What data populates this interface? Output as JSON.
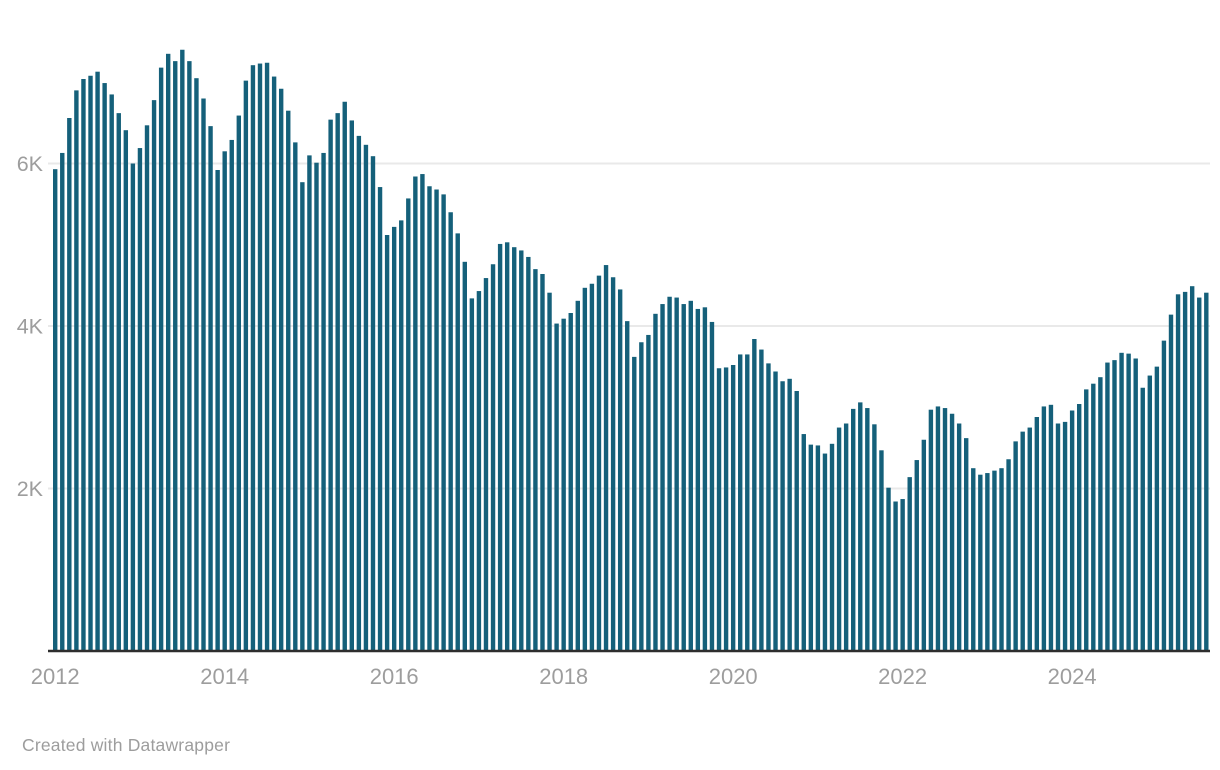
{
  "footer": {
    "attribution": "Created with Datawrapper"
  },
  "colors": {
    "bar": "#15607a",
    "grid": "#e9e9e9",
    "axis_line": "#2e2e2e",
    "tick_label": "#9d9d9d",
    "footer_text": "#9d9d9d",
    "background": "#ffffff"
  },
  "chart_data": {
    "type": "bar",
    "title": "",
    "xlabel": "",
    "ylabel": "",
    "x_unit": "month",
    "start_year": 2012,
    "start_month": 1,
    "end_year": 2025,
    "end_month": 8,
    "ylim": [
      0,
      7500
    ],
    "grid": "horizontal",
    "legend": "none",
    "y_ticks": [
      {
        "label": "2K",
        "value": 2000
      },
      {
        "label": "4K",
        "value": 4000
      },
      {
        "label": "6K",
        "value": 6000
      }
    ],
    "x_ticks": [
      {
        "label": "2012",
        "month_index": 0
      },
      {
        "label": "2014",
        "month_index": 24
      },
      {
        "label": "2016",
        "month_index": 48
      },
      {
        "label": "2018",
        "month_index": 72
      },
      {
        "label": "2020",
        "month_index": 96
      },
      {
        "label": "2022",
        "month_index": 120
      },
      {
        "label": "2024",
        "month_index": 144
      }
    ],
    "values": [
      5930,
      6130,
      6560,
      6900,
      7040,
      7080,
      7130,
      6990,
      6850,
      6620,
      6410,
      6000,
      6190,
      6470,
      6780,
      7180,
      7350,
      7260,
      7400,
      7260,
      7050,
      6800,
      6460,
      5920,
      6150,
      6290,
      6590,
      7020,
      7210,
      7230,
      7240,
      7070,
      6920,
      6650,
      6260,
      5770,
      6100,
      6010,
      6130,
      6540,
      6620,
      6760,
      6530,
      6340,
      6230,
      6090,
      5710,
      5120,
      5220,
      5300,
      5570,
      5840,
      5870,
      5720,
      5680,
      5620,
      5400,
      5140,
      4790,
      4340,
      4430,
      4590,
      4760,
      5010,
      5030,
      4970,
      4930,
      4850,
      4700,
      4640,
      4410,
      4030,
      4090,
      4160,
      4310,
      4470,
      4520,
      4620,
      4750,
      4600,
      4450,
      4060,
      3620,
      3800,
      3890,
      4150,
      4270,
      4360,
      4350,
      4270,
      4310,
      4210,
      4230,
      4050,
      3480,
      3490,
      3520,
      3650,
      3650,
      3840,
      3710,
      3540,
      3440,
      3320,
      3350,
      3200,
      2670,
      2540,
      2530,
      2430,
      2550,
      2750,
      2800,
      2980,
      3060,
      2990,
      2790,
      2470,
      2010,
      1840,
      1870,
      2140,
      2350,
      2600,
      2970,
      3010,
      2990,
      2920,
      2800,
      2620,
      2250,
      2170,
      2190,
      2220,
      2250,
      2360,
      2580,
      2700,
      2750,
      2880,
      3010,
      3030,
      2800,
      2820,
      2960,
      3040,
      3220,
      3290,
      3370,
      3550,
      3580,
      3670,
      3660,
      3600,
      3240,
      3390,
      3500,
      3820,
      4140,
      4390,
      4420,
      4490,
      4350,
      4410
    ]
  }
}
